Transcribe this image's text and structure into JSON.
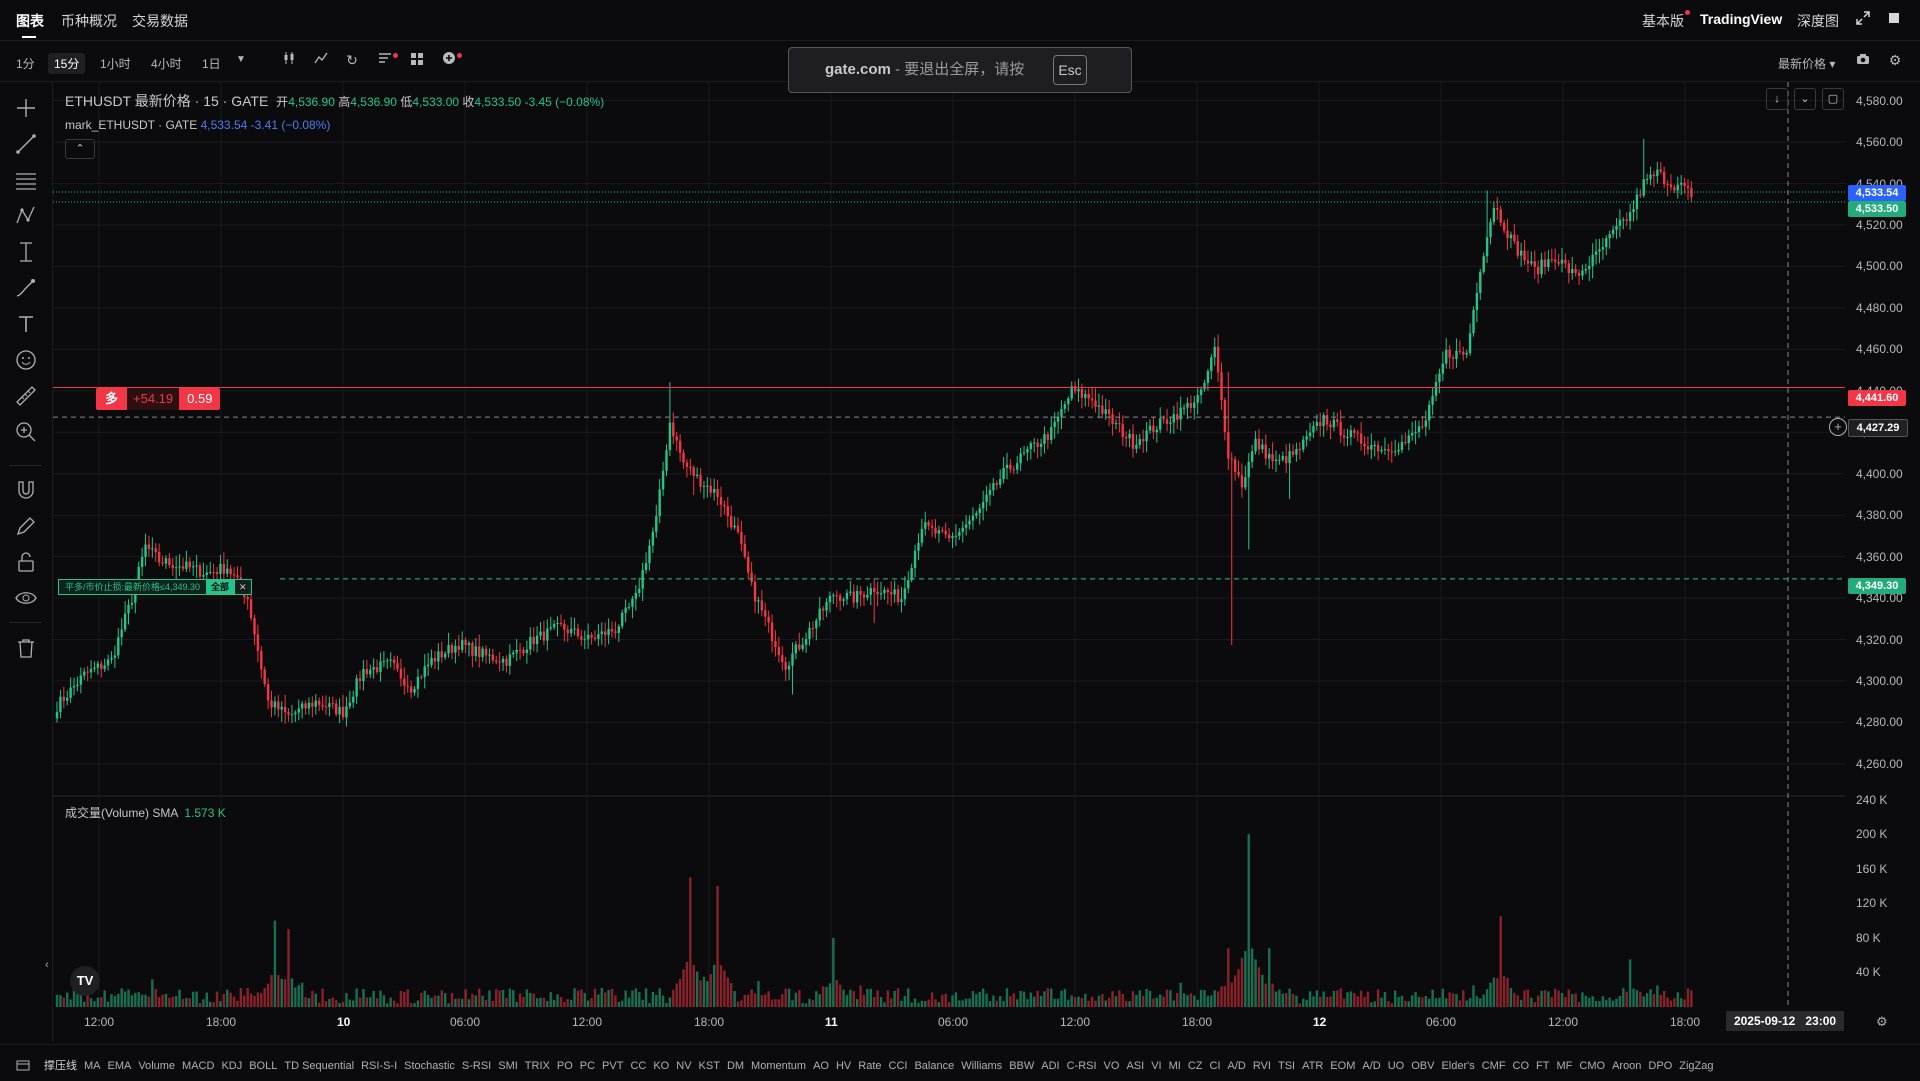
{
  "top_nav": {
    "tabs": [
      "图表",
      "币种概况",
      "交易数据"
    ],
    "right": {
      "basic": "基本版",
      "tradingview": "TradingView",
      "depth": "深度图"
    }
  },
  "toolbar": {
    "timeframes": [
      "1分",
      "15分",
      "1小时",
      "4小时",
      "1日"
    ],
    "active_timeframe": "15分",
    "price_source": "最新价格"
  },
  "esc_banner": {
    "brand": "gate.com",
    "text": "- 要退出全屏，请按",
    "key": "Esc"
  },
  "legend": {
    "symbol": "ETHUSDT 最新价格 · 15 · GATE",
    "open_label": "开",
    "open": "4,536.90",
    "high_label": "高",
    "high": "4,536.90",
    "low_label": "低",
    "low": "4,533.00",
    "close_label": "收",
    "close": "4,533.50",
    "change": "-3.45 (−0.08%)",
    "mark_symbol": "mark_ETHUSDT · GATE",
    "mark_value": "4,533.54",
    "mark_change": "-3.41 (−0.08%)",
    "collapse_icon": "chevron-up-icon"
  },
  "volume_legend": {
    "label": "成交量(Volume) SMA",
    "value": "1.573 K"
  },
  "position": {
    "side": "多",
    "pnl": "+54.19",
    "qty": "0.59"
  },
  "stop_order": {
    "label": "平多/市价止损:最新价格≤4,349.30",
    "all": "全部",
    "close": "✕"
  },
  "price_tags": {
    "mark": "4,533.54",
    "last": "4,533.50",
    "entry": "4,441.60",
    "crosshair": "4,427.29",
    "stop": "4,349.30"
  },
  "crosshair_time": {
    "date": "2025-09-12",
    "time": "23:00"
  },
  "indicators": [
    "撑压线",
    "MA",
    "EMA",
    "Volume",
    "MACD",
    "KDJ",
    "BOLL",
    "TD Sequential",
    "RSI-S-I",
    "Stochastic",
    "S-RSI",
    "SMI",
    "TRIX",
    "PO",
    "PC",
    "PVT",
    "CC",
    "KO",
    "NV",
    "KST",
    "DM",
    "Momentum",
    "AO",
    "HV",
    "Rate",
    "CCI",
    "Balance",
    "Williams",
    "BBW",
    "ADI",
    "C-RSI",
    "VO",
    "ASI",
    "VI",
    "MI",
    "CZ",
    "CI",
    "A/D",
    "RVI",
    "TSI",
    "ATR",
    "EOM",
    "A/D",
    "UO",
    "OBV",
    "Elder's",
    "CMF",
    "CO",
    "FT",
    "MF",
    "CMO",
    "Aroon",
    "DPO",
    "ZigZag"
  ],
  "colors": {
    "up": "#22c58b",
    "down": "#f23645",
    "mark": "#2962ff",
    "background": "#0b0b0d"
  },
  "chart_data": {
    "type": "candlestick",
    "symbol": "ETHUSDT",
    "interval": "15",
    "price_ticks": [
      "4,580.00",
      "4,560.00",
      "4,540.00",
      "4,520.00",
      "4,500.00",
      "4,480.00",
      "4,460.00",
      "4,440.00",
      "4,420.00",
      "4,400.00",
      "4,380.00",
      "4,360.00",
      "4,340.00",
      "4,320.00",
      "4,300.00",
      "4,280.00",
      "4,260.00"
    ],
    "ylim": [
      4245,
      4589
    ],
    "volume_ticks": [
      "240 K",
      "200 K",
      "160 K",
      "120 K",
      "80 K",
      "40 K"
    ],
    "volume_ylim": [
      0,
      243
    ],
    "time_ticks": [
      "12:00",
      "18:00",
      "10",
      "06:00",
      "12:00",
      "18:00",
      "11",
      "06:00",
      "12:00",
      "18:00",
      "12",
      "06:00",
      "12:00",
      "18:00"
    ],
    "close_anchors": [
      [
        0,
        4288
      ],
      [
        8,
        4303
      ],
      [
        16,
        4310
      ],
      [
        22,
        4340
      ],
      [
        26,
        4365
      ],
      [
        30,
        4358
      ],
      [
        38,
        4355
      ],
      [
        44,
        4352
      ],
      [
        50,
        4355
      ],
      [
        56,
        4340
      ],
      [
        62,
        4290
      ],
      [
        68,
        4283
      ],
      [
        76,
        4290
      ],
      [
        84,
        4285
      ],
      [
        90,
        4305
      ],
      [
        98,
        4308
      ],
      [
        104,
        4297
      ],
      [
        110,
        4310
      ],
      [
        118,
        4318
      ],
      [
        126,
        4312
      ],
      [
        132,
        4310
      ],
      [
        140,
        4320
      ],
      [
        148,
        4326
      ],
      [
        156,
        4320
      ],
      [
        164,
        4325
      ],
      [
        170,
        4340
      ],
      [
        176,
        4378
      ],
      [
        180,
        4425
      ],
      [
        184,
        4405
      ],
      [
        188,
        4398
      ],
      [
        194,
        4390
      ],
      [
        200,
        4370
      ],
      [
        204,
        4345
      ],
      [
        210,
        4322
      ],
      [
        214,
        4308
      ],
      [
        220,
        4322
      ],
      [
        228,
        4342
      ],
      [
        234,
        4340
      ],
      [
        240,
        4345
      ],
      [
        248,
        4340
      ],
      [
        254,
        4375
      ],
      [
        262,
        4368
      ],
      [
        270,
        4380
      ],
      [
        278,
        4400
      ],
      [
        286,
        4412
      ],
      [
        292,
        4420
      ],
      [
        298,
        4440
      ],
      [
        304,
        4436
      ],
      [
        310,
        4425
      ],
      [
        316,
        4415
      ],
      [
        322,
        4422
      ],
      [
        330,
        4430
      ],
      [
        336,
        4438
      ],
      [
        340,
        4460
      ],
      [
        344,
        4410
      ],
      [
        348,
        4395
      ],
      [
        352,
        4415
      ],
      [
        358,
        4405
      ],
      [
        364,
        4410
      ],
      [
        372,
        4427
      ],
      [
        378,
        4420
      ],
      [
        384,
        4415
      ],
      [
        390,
        4412
      ],
      [
        396,
        4415
      ],
      [
        402,
        4425
      ],
      [
        408,
        4458
      ],
      [
        414,
        4458
      ],
      [
        418,
        4500
      ],
      [
        422,
        4530
      ],
      [
        428,
        4510
      ],
      [
        434,
        4498
      ],
      [
        440,
        4505
      ],
      [
        446,
        4495
      ],
      [
        452,
        4505
      ],
      [
        458,
        4518
      ],
      [
        462,
        4525
      ],
      [
        466,
        4540
      ],
      [
        470,
        4545
      ],
      [
        474,
        4540
      ],
      [
        478,
        4538
      ],
      [
        480,
        4533.5
      ]
    ],
    "volume_peaks_k": [
      [
        20,
        18
      ],
      [
        28,
        32
      ],
      [
        36,
        20
      ],
      [
        56,
        22
      ],
      [
        64,
        100
      ],
      [
        68,
        90
      ],
      [
        72,
        28
      ],
      [
        90,
        12
      ],
      [
        120,
        14
      ],
      [
        140,
        10
      ],
      [
        160,
        22
      ],
      [
        186,
        150
      ],
      [
        190,
        35
      ],
      [
        194,
        140
      ],
      [
        206,
        30
      ],
      [
        228,
        80
      ],
      [
        236,
        25
      ],
      [
        270,
        15
      ],
      [
        300,
        12
      ],
      [
        330,
        28
      ],
      [
        344,
        68
      ],
      [
        350,
        200
      ],
      [
        356,
        68
      ],
      [
        380,
        18
      ],
      [
        404,
        20
      ],
      [
        416,
        25
      ],
      [
        424,
        105
      ],
      [
        432,
        20
      ],
      [
        462,
        55
      ],
      [
        470,
        25
      ]
    ],
    "last_price": 4533.5,
    "mark_price": 4533.54,
    "entry_price": 4441.6,
    "stop_price": 4349.3,
    "crosshair_price": 4427.29,
    "crosshair_time": "2025-09-12 23:00"
  }
}
